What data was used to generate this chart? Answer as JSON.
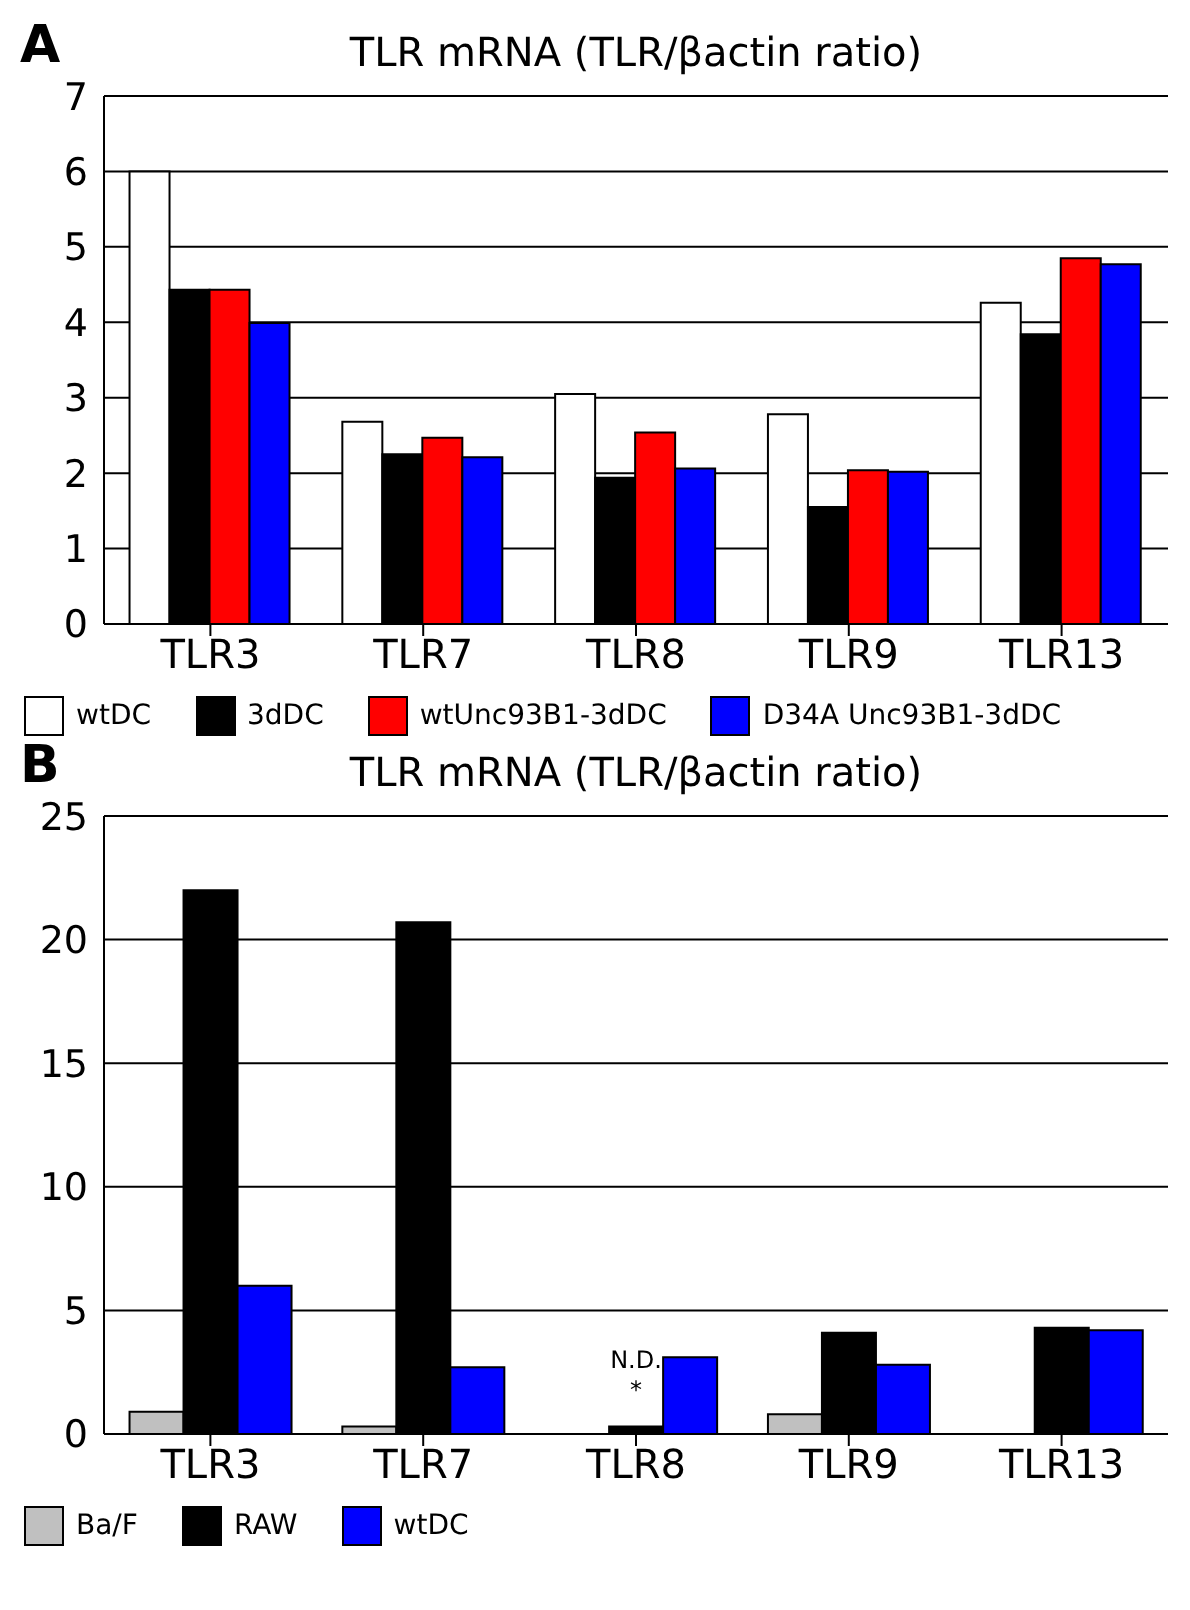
{
  "chart_data": [
    {
      "type": "bar",
      "title": "TLR mRNA (TLR/βactin ratio)",
      "categories": [
        "TLR3",
        "TLR7",
        "TLR8",
        "TLR9",
        "TLR13"
      ],
      "series": [
        {
          "name": "wtDC",
          "color": "#ffffff",
          "values": [
            6.0,
            2.68,
            3.05,
            2.78,
            4.26
          ]
        },
        {
          "name": "3dDC",
          "color": "#000000",
          "values": [
            4.43,
            2.25,
            1.94,
            1.55,
            3.84
          ]
        },
        {
          "name": "wtUnc93B1-3dDC",
          "color": "#ff0000",
          "values": [
            4.43,
            2.47,
            2.54,
            2.04,
            4.85
          ]
        },
        {
          "name": "D34A Unc93B1-3dDC",
          "color": "#0000ff",
          "values": [
            3.99,
            2.21,
            2.06,
            2.02,
            4.77
          ]
        }
      ],
      "ylim": [
        0,
        7
      ],
      "yticks": [
        0,
        1,
        2,
        3,
        4,
        5,
        6,
        7
      ],
      "grid": "y",
      "legend": "bottom",
      "annotations": [
        "A"
      ]
    },
    {
      "type": "bar",
      "title": "TLR mRNA (TLR/βactin ratio)",
      "categories": [
        "TLR3",
        "TLR7",
        "TLR8",
        "TLR9",
        "TLR13"
      ],
      "series": [
        {
          "name": "Ba/F",
          "color": "#c0c0c0",
          "values": [
            0.9,
            0.3,
            null,
            0.8,
            null
          ]
        },
        {
          "name": "RAW",
          "color": "#000000",
          "values": [
            22.0,
            20.7,
            0.3,
            4.1,
            4.3
          ]
        },
        {
          "name": "wtDC",
          "color": "#0000ff",
          "values": [
            6.0,
            2.7,
            3.1,
            2.8,
            4.2
          ]
        }
      ],
      "ylim": [
        0,
        25
      ],
      "yticks": [
        0,
        5,
        10,
        15,
        20,
        25
      ],
      "grid": "y",
      "legend": "bottom",
      "annotations": [
        "B",
        "N.D.",
        "*"
      ]
    }
  ]
}
